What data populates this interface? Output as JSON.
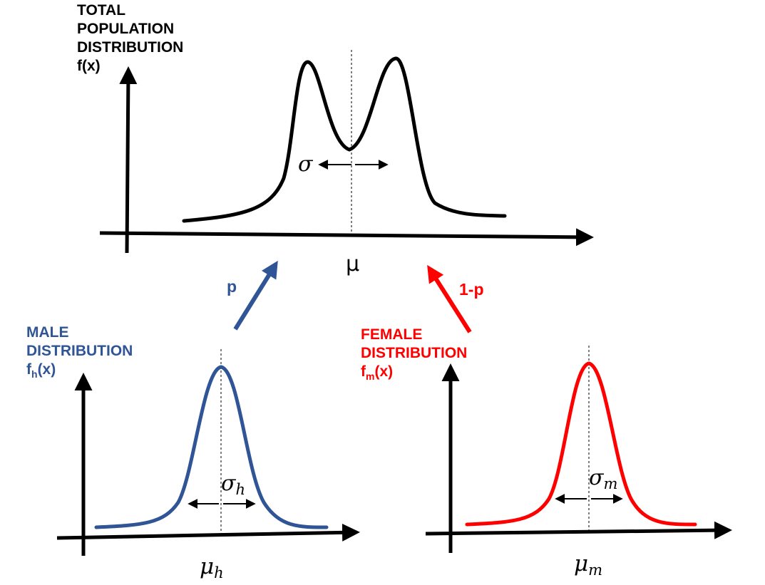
{
  "colors": {
    "total": "#000000",
    "male": "#2f5597",
    "female": "#ff0000"
  },
  "total": {
    "title_lines": [
      "TOTAL",
      "POPULATION",
      "DISTRIBUTION",
      "f(x)"
    ],
    "sigma": "σ",
    "mu": "μ"
  },
  "arrows": {
    "male_label": "p",
    "female_label": "1-p"
  },
  "male": {
    "title_lines": [
      "MALE",
      "DISTRIBUTION"
    ],
    "func_prefix": "f",
    "func_sub": "h",
    "func_suffix": "(x)",
    "sigma": "σ",
    "sigma_sub": "h",
    "mu": "μ",
    "mu_sub": "h"
  },
  "female": {
    "title_lines": [
      "FEMALE",
      "DISTRIBUTION"
    ],
    "func_prefix": "f",
    "func_sub": "m",
    "func_suffix": "(x)",
    "sigma": "σ",
    "sigma_sub": "m",
    "mu": "μ",
    "mu_sub": "m"
  }
}
